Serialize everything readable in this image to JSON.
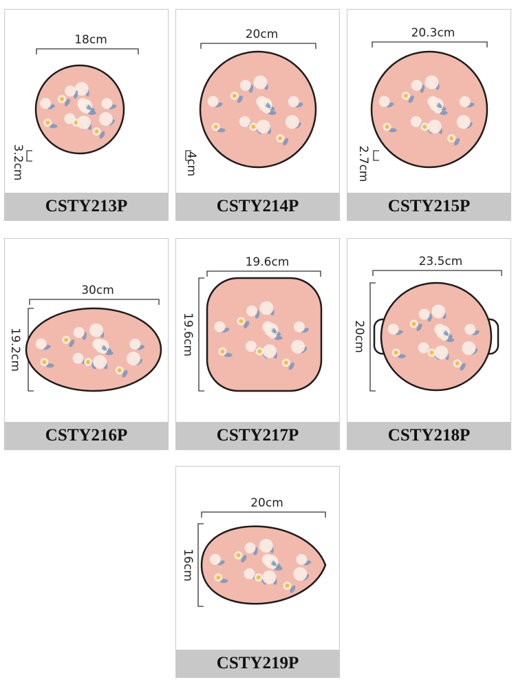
{
  "products": [
    {
      "code": "CSTY213P",
      "width": "18cm",
      "height": "3.2cm"
    },
    {
      "code": "CSTY214P",
      "width": "20cm",
      "height": "4cm"
    },
    {
      "code": "CSTY215P",
      "width": "20.3cm",
      "height": "2.7cm"
    },
    {
      "code": "CSTY216P",
      "width": "30cm",
      "height": "19.2cm"
    },
    {
      "code": "CSTY217P",
      "width": "19.6cm",
      "height": "19.6cm"
    },
    {
      "code": "CSTY218P",
      "width": "23.5cm",
      "height": "20cm"
    },
    {
      "code": "CSTY219P",
      "width": "20cm",
      "height": "16cm"
    }
  ]
}
